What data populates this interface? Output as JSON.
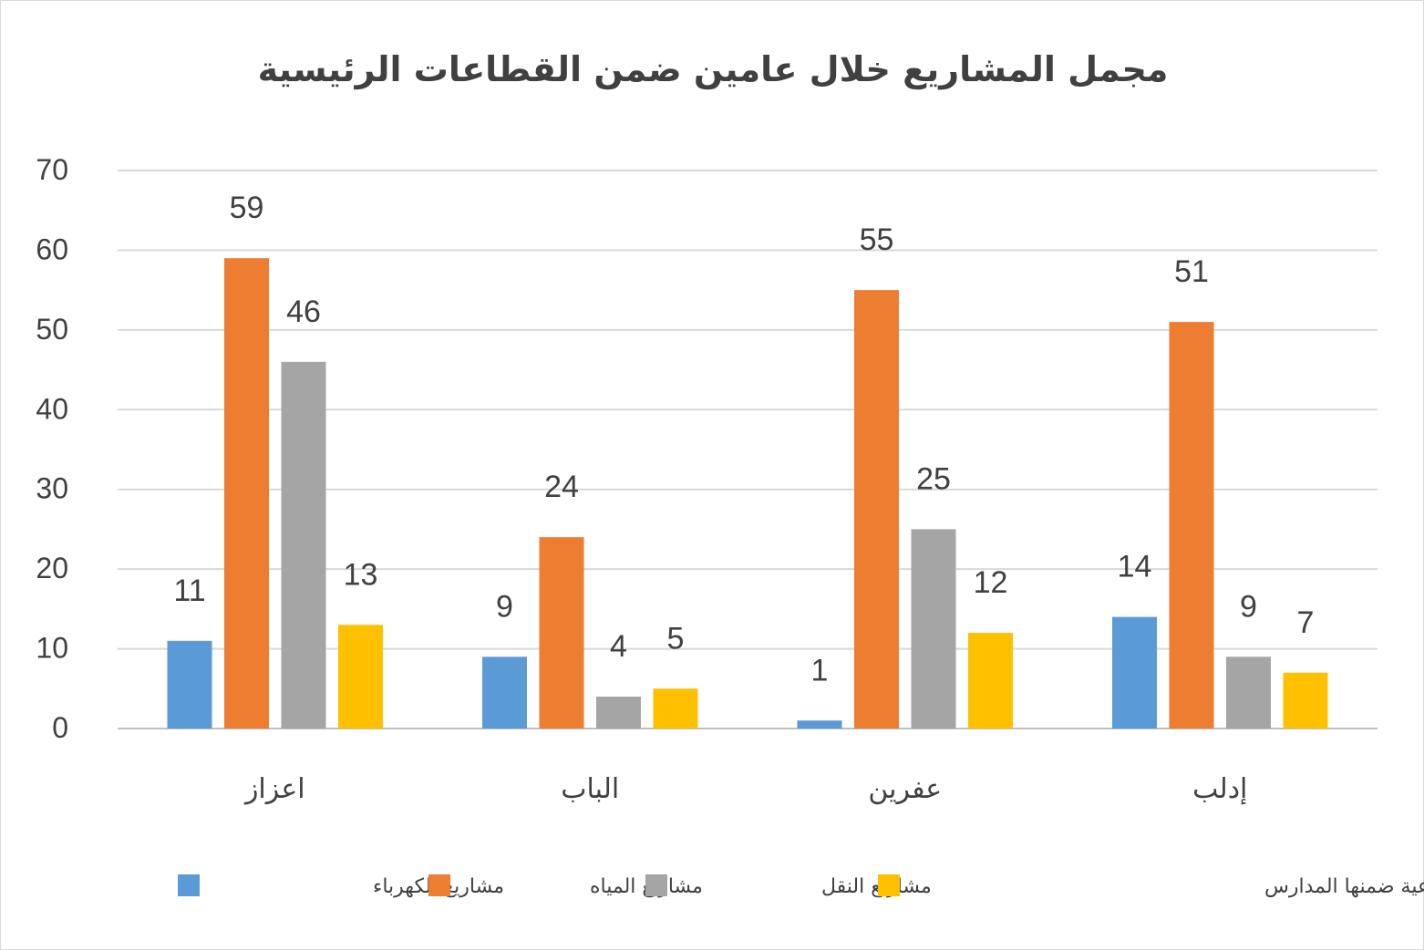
{
  "chart_data": {
    "type": "bar",
    "title": "مجمل المشاريع خلال عامين ضمن القطاعات الرئيسية",
    "categories": [
      "اعزاز",
      "الباب",
      "عفرين",
      "إدلب"
    ],
    "series": [
      {
        "name": "مشاريع الكهرباء",
        "color": "#5b9bd5",
        "values": [
          11,
          9,
          1,
          14
        ]
      },
      {
        "name": "مشاريع المياه",
        "color": "#ed7d31",
        "values": [
          59,
          24,
          55,
          51
        ]
      },
      {
        "name": "مشاريع النقل",
        "color": "#a5a5a5",
        "values": [
          46,
          4,
          25,
          9
        ]
      },
      {
        "name": "المشاريع الاجتماعية ضمنها المدارس",
        "color": "#ffc000",
        "values": [
          13,
          5,
          12,
          7
        ]
      }
    ],
    "ylim": [
      0,
      70
    ],
    "yticks": [
      0,
      10,
      20,
      30,
      40,
      50,
      60,
      70
    ],
    "grid": true,
    "legend_position": "bottom",
    "data_labels": true
  }
}
